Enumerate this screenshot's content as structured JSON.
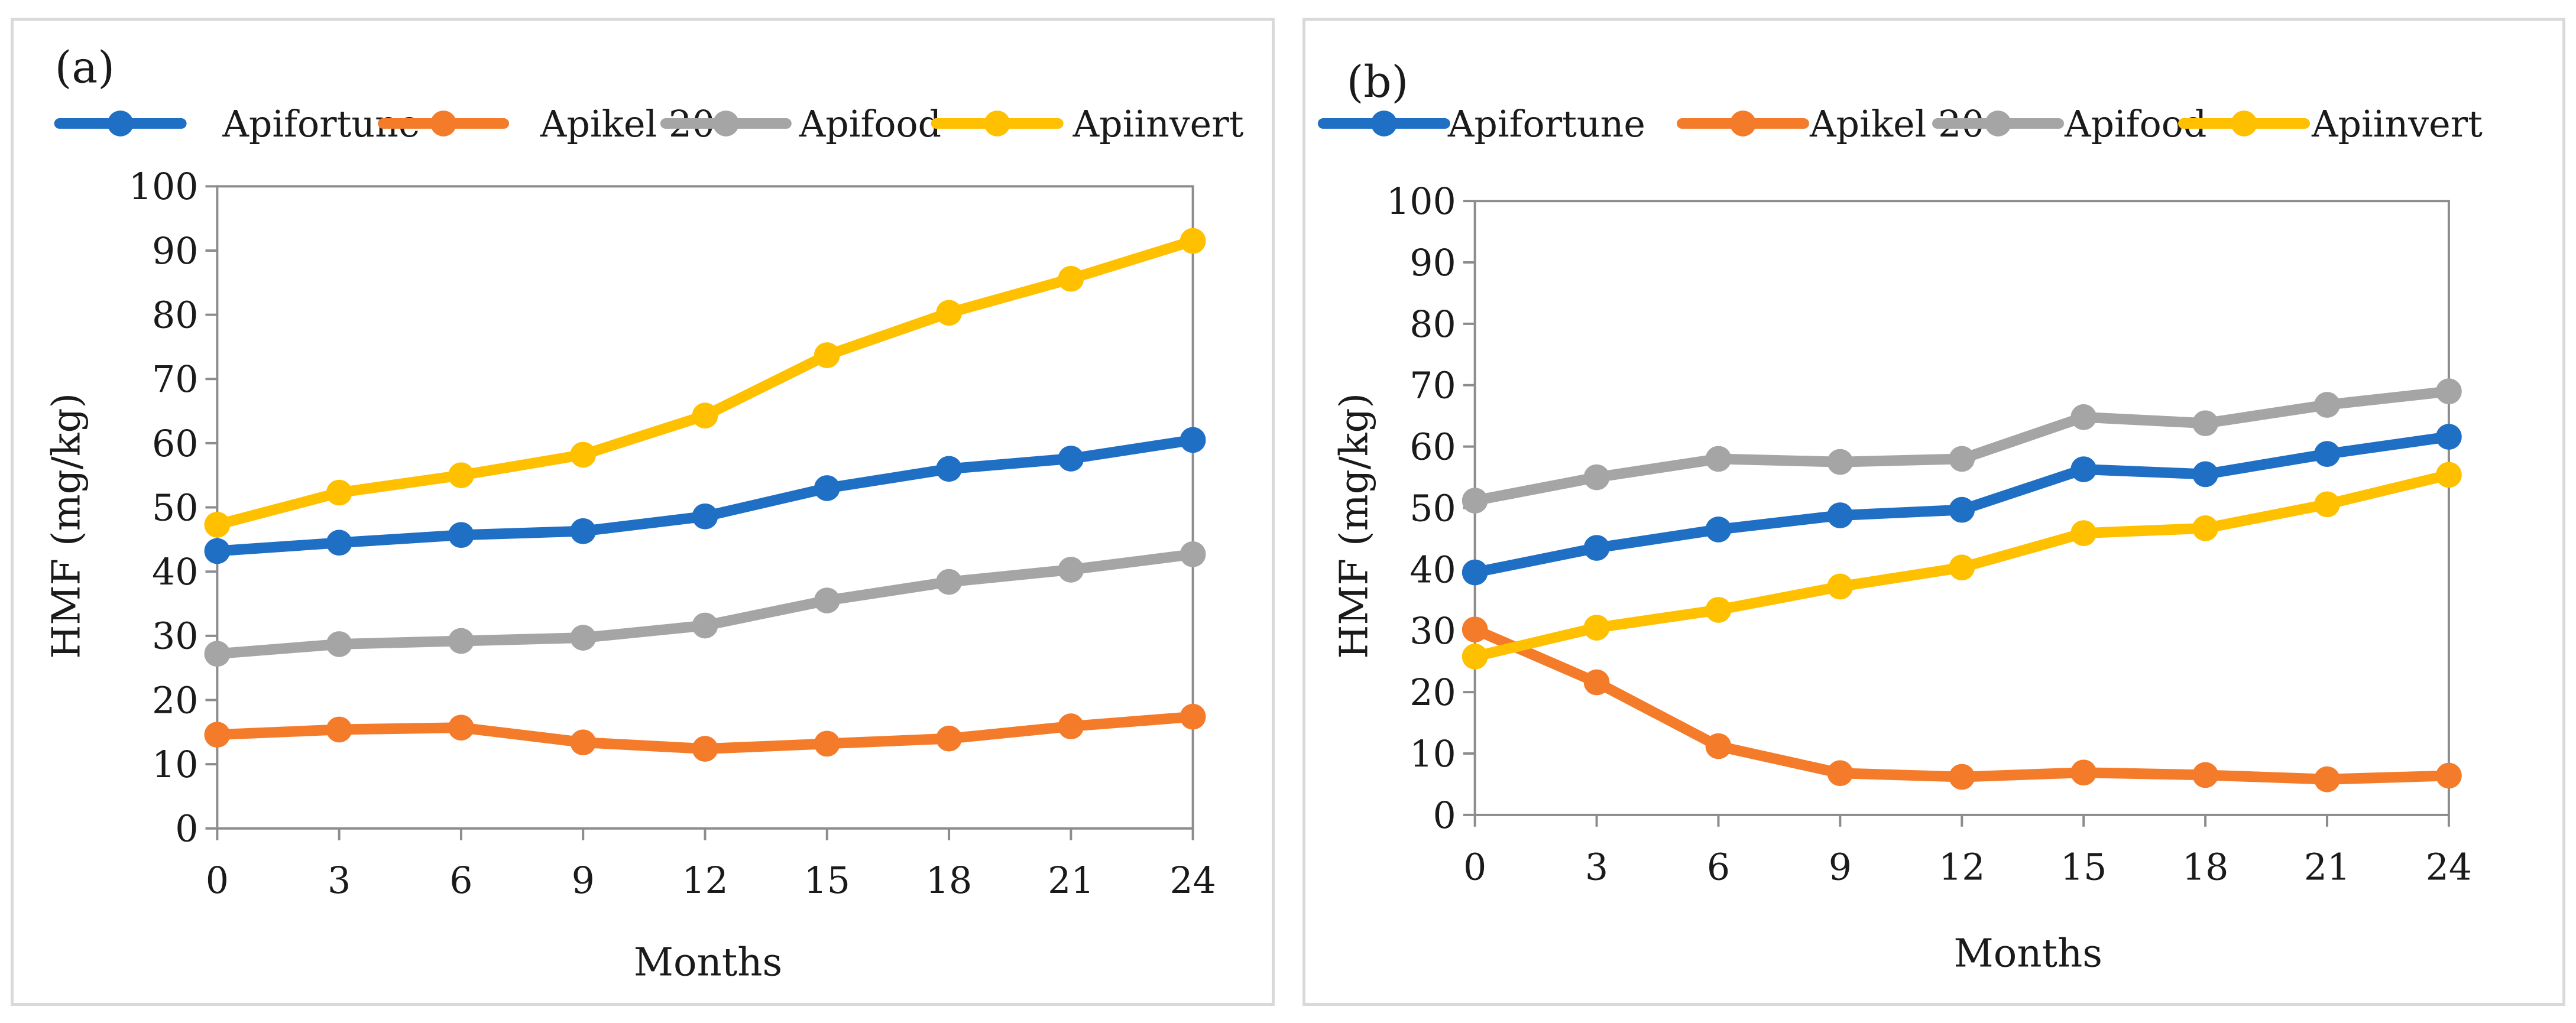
{
  "chart_data": [
    {
      "type": "line",
      "panel_label": "(a)",
      "xlabel": "Months",
      "ylabel": "HMF (mg/kg)",
      "x": [
        0,
        3,
        6,
        9,
        12,
        15,
        18,
        21,
        24
      ],
      "ylim": [
        0,
        100
      ],
      "yticks": [
        0,
        10,
        20,
        30,
        40,
        50,
        60,
        70,
        80,
        90,
        100
      ],
      "grid": false,
      "legend_position": "top",
      "series": [
        {
          "name": "Apifortune",
          "color": "#1f6fc5",
          "values": [
            43.2,
            44.5,
            45.7,
            46.3,
            48.6,
            53.0,
            56.0,
            57.6,
            60.5
          ]
        },
        {
          "name": "Apikel 20",
          "color": "#f47b2a",
          "values": [
            14.6,
            15.4,
            15.7,
            13.4,
            12.4,
            13.2,
            14.0,
            15.9,
            17.4
          ]
        },
        {
          "name": "Apifood",
          "color": "#a5a5a5",
          "values": [
            27.2,
            28.7,
            29.2,
            29.7,
            31.6,
            35.5,
            38.4,
            40.3,
            42.7
          ]
        },
        {
          "name": "Apiinvert",
          "color": "#ffc000",
          "values": [
            47.3,
            52.3,
            55.0,
            58.2,
            64.3,
            73.7,
            80.3,
            85.6,
            91.5
          ]
        }
      ]
    },
    {
      "type": "line",
      "panel_label": "(b)",
      "xlabel": "Months",
      "ylabel": "HMF (mg/kg)",
      "x": [
        0,
        3,
        6,
        9,
        12,
        15,
        18,
        21,
        24
      ],
      "ylim": [
        0,
        100
      ],
      "yticks": [
        0,
        10,
        20,
        30,
        40,
        50,
        60,
        70,
        80,
        90,
        100
      ],
      "grid": false,
      "legend_position": "top",
      "series": [
        {
          "name": "Apifortune",
          "color": "#1f6fc5",
          "values": [
            39.5,
            43.5,
            46.5,
            48.8,
            49.7,
            56.3,
            55.5,
            58.8,
            61.6
          ]
        },
        {
          "name": "Apikel 20",
          "color": "#f47b2a",
          "values": [
            30.2,
            21.6,
            11.2,
            6.8,
            6.2,
            6.9,
            6.5,
            5.8,
            6.4
          ]
        },
        {
          "name": "Apifood",
          "color": "#a5a5a5",
          "values": [
            51.2,
            55.0,
            58.0,
            57.5,
            58.0,
            64.8,
            63.8,
            66.8,
            69.0
          ]
        },
        {
          "name": "Apiinvert",
          "color": "#ffc000",
          "values": [
            25.8,
            30.5,
            33.4,
            37.2,
            40.3,
            45.9,
            46.7,
            50.6,
            55.4
          ]
        }
      ]
    }
  ]
}
